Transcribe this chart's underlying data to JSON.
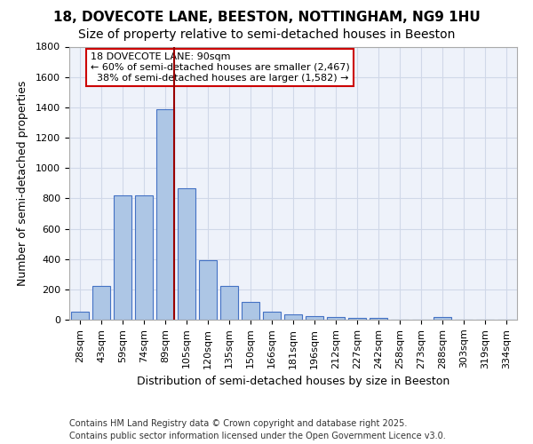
{
  "title_line1": "18, DOVECOTE LANE, BEESTON, NOTTINGHAM, NG9 1HU",
  "title_line2": "Size of property relative to semi-detached houses in Beeston",
  "xlabel": "Distribution of semi-detached houses by size in Beeston",
  "ylabel": "Number of semi-detached properties",
  "categories": [
    "28sqm",
    "43sqm",
    "59sqm",
    "74sqm",
    "89sqm",
    "105sqm",
    "120sqm",
    "135sqm",
    "150sqm",
    "166sqm",
    "181sqm",
    "196sqm",
    "212sqm",
    "227sqm",
    "242sqm",
    "258sqm",
    "273sqm",
    "288sqm",
    "303sqm",
    "319sqm",
    "334sqm"
  ],
  "values": [
    50,
    220,
    820,
    820,
    1390,
    865,
    395,
    220,
    120,
    50,
    35,
    25,
    15,
    10,
    10,
    0,
    0,
    15,
    0,
    0,
    0
  ],
  "bar_color": "#adc6e5",
  "bar_edge_color": "#4472c4",
  "grid_color": "#d0d8e8",
  "background_color": "#eef2fa",
  "annotation_box_text": "18 DOVECOTE LANE: 90sqm\n← 60% of semi-detached houses are smaller (2,467)\n  38% of semi-detached houses are larger (1,582) →",
  "annotation_box_color": "#ffffff",
  "annotation_box_edge_color": "#cc0000",
  "vline_x_index": 4,
  "vline_color": "#990000",
  "ylim": [
    0,
    1800
  ],
  "yticks": [
    0,
    200,
    400,
    600,
    800,
    1000,
    1200,
    1400,
    1600,
    1800
  ],
  "footnote_line1": "Contains HM Land Registry data © Crown copyright and database right 2025.",
  "footnote_line2": "Contains public sector information licensed under the Open Government Licence v3.0.",
  "title_fontsize": 11,
  "subtitle_fontsize": 10,
  "axis_label_fontsize": 9,
  "tick_fontsize": 8,
  "annotation_fontsize": 8,
  "footnote_fontsize": 7
}
